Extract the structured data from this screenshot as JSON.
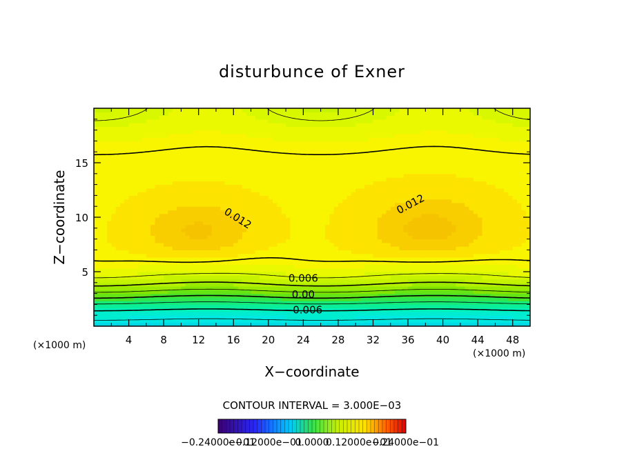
{
  "chart_data": {
    "type": "heatmap",
    "title": "disturbunce of Exner",
    "xlabel": "X−coordinate",
    "ylabel": "Z−coordinate",
    "x_unit": "(×1000 m)",
    "y_unit": "(×1000 m)",
    "xlim": [
      0,
      50
    ],
    "ylim": [
      0,
      20
    ],
    "x_ticks": [
      "4",
      "8",
      "12",
      "16",
      "20",
      "24",
      "28",
      "32",
      "36",
      "40",
      "44",
      "48"
    ],
    "y_ticks": [
      "5",
      "10",
      "15"
    ],
    "contour_interval_label": "CONTOUR INTERVAL = 3.000E−03",
    "colorbar_labels": [
      "−0.24000e−01",
      "−0.12000e−01",
      "0.0000",
      "0.12000e−01",
      "0.24000e−01"
    ],
    "colorbar_range": [
      -0.024,
      0.024
    ],
    "contour_labels": [
      {
        "text": "0.012",
        "x": 16.5,
        "z": 9.9
      },
      {
        "text": "0.012",
        "x": 36.3,
        "z": 11.2
      },
      {
        "text": "0.006",
        "x": 24.0,
        "z": 4.4
      },
      {
        "text": "0.00",
        "x": 24.0,
        "z": 2.9
      },
      {
        "text": "−0.006",
        "x": 24.0,
        "z": 1.5
      }
    ],
    "contour_lines": [
      {
        "level": 0.012,
        "style": "solid-thick",
        "note": "closed loop, left",
        "center_x": 12,
        "center_z": 8.9
      },
      {
        "level": 0.012,
        "style": "solid-thick",
        "note": "closed loop, right",
        "center_x": 38,
        "center_z": 9.2
      },
      {
        "level": 0.009,
        "style": "solid-thin",
        "note": "near top and near z=5.5"
      },
      {
        "level": 0.006,
        "style": "solid-thick"
      },
      {
        "level": 0.003,
        "style": "solid-thin"
      },
      {
        "level": 0.0,
        "style": "solid-thick"
      },
      {
        "level": -0.003,
        "style": "dashed-thin"
      },
      {
        "level": -0.006,
        "style": "dashed-thick"
      },
      {
        "level": -0.009,
        "style": "dashed-thin"
      }
    ],
    "field_extrema": {
      "max": {
        "value": 0.015,
        "location": [
          [
            12,
            8.5
          ],
          [
            38.5,
            8.8
          ]
        ]
      },
      "min": {
        "value": -0.01,
        "location_z": 0
      }
    }
  },
  "colors": {
    "max_fill": "#f8c800",
    "high_fill": "#ffea00",
    "mid_fill": "#d8f800",
    "low_fill": "#40e040",
    "min_fill": "#00f0e0"
  }
}
